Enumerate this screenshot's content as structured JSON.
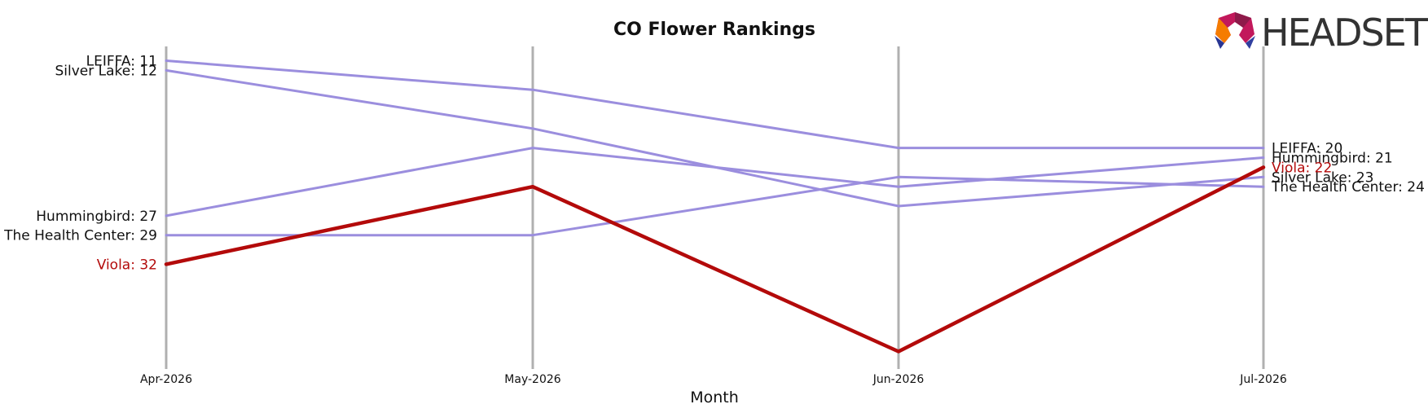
{
  "chart_data": {
    "type": "line",
    "title": "CO Flower Rankings",
    "xlabel": "Month",
    "ylabel": "",
    "y_inverted": true,
    "categories": [
      "Apr-2026",
      "May-2026",
      "Jun-2026",
      "Jul-2026"
    ],
    "series": [
      {
        "name": "LEIFFA",
        "values": [
          11,
          14,
          20,
          20
        ],
        "color": "#9b8ede",
        "highlight": false,
        "start_label": "LEIFFA: 11",
        "end_label": "LEIFFA: 20"
      },
      {
        "name": "Silver Lake",
        "values": [
          12,
          18,
          26,
          23
        ],
        "color": "#9b8ede",
        "highlight": false,
        "start_label": "Silver Lake: 12",
        "end_label": "Silver Lake: 23"
      },
      {
        "name": "Hummingbird",
        "values": [
          27,
          20,
          24,
          21
        ],
        "color": "#9b8ede",
        "highlight": false,
        "start_label": "Hummingbird: 27",
        "end_label": "Hummingbird: 21"
      },
      {
        "name": "The Health Center",
        "values": [
          29,
          29,
          23,
          24
        ],
        "color": "#9b8ede",
        "highlight": false,
        "start_label": "The Health Center: 29",
        "end_label": "The Health Center: 24"
      },
      {
        "name": "Viola",
        "values": [
          32,
          24,
          41,
          22
        ],
        "color": "#b30a0a",
        "highlight": true,
        "start_label": "Viola: 32",
        "end_label": "Viola: 22"
      }
    ],
    "grid": "vertical",
    "legend": "none"
  },
  "logo": {
    "text": "HEADSET"
  }
}
